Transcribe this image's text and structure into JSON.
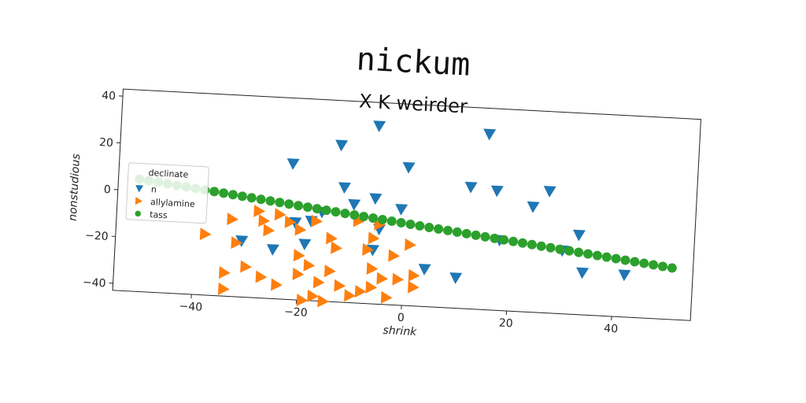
{
  "chart_data": {
    "type": "scatter",
    "title": "nickum",
    "subtitle": "X K weirder",
    "xlabel": "shrink",
    "ylabel": "nonstudious",
    "xlim": [
      -55,
      55
    ],
    "ylim": [
      -43,
      43
    ],
    "xticks": [
      -40,
      -20,
      0,
      20,
      40
    ],
    "yticks": [
      -40,
      -20,
      0,
      20,
      40
    ],
    "legend": {
      "title": "declinate",
      "placement": "left"
    },
    "series": [
      {
        "name": "n",
        "color": "#1f77b4",
        "marker": "triangle-down",
        "points": [
          [
            -6,
            33
          ],
          [
            15,
            32
          ],
          [
            -13,
            24
          ],
          [
            0,
            16
          ],
          [
            -22,
            15
          ],
          [
            12,
            9
          ],
          [
            17,
            8
          ],
          [
            27,
            9
          ],
          [
            -12,
            6
          ],
          [
            -6,
            2
          ],
          [
            24,
            2
          ],
          [
            -1,
            -2
          ],
          [
            -10,
            -1
          ],
          [
            -16,
            -5
          ],
          [
            -21,
            -10
          ],
          [
            -18,
            -9
          ],
          [
            -5,
            -11
          ],
          [
            -31,
            -19
          ],
          [
            -19,
            -19
          ],
          [
            -6,
            -20
          ],
          [
            18,
            -13
          ],
          [
            30,
            -16
          ],
          [
            33,
            -9
          ],
          [
            4,
            -27
          ],
          [
            34,
            -25
          ],
          [
            42,
            -25
          ],
          [
            10,
            -30
          ],
          [
            31,
            -52
          ],
          [
            -25,
            -22
          ]
        ]
      },
      {
        "name": "allylamine",
        "color": "#ff7f0e",
        "marker": "triangle-right",
        "points": [
          [
            -38,
            -17
          ],
          [
            -33,
            -10
          ],
          [
            -28,
            -6
          ],
          [
            -27,
            -10
          ],
          [
            -24,
            -7
          ],
          [
            -22,
            -10
          ],
          [
            -20,
            -13
          ],
          [
            -17,
            -9
          ],
          [
            -26,
            -14
          ],
          [
            -32,
            -20
          ],
          [
            -30,
            -30
          ],
          [
            -34,
            -33
          ],
          [
            -27,
            -34
          ],
          [
            -24,
            -37
          ],
          [
            -34,
            -40
          ],
          [
            -20,
            -24
          ],
          [
            -18,
            -28
          ],
          [
            -14,
            -30
          ],
          [
            -12,
            -36
          ],
          [
            -16,
            -35
          ],
          [
            -20,
            -32
          ],
          [
            -17,
            -41
          ],
          [
            -10,
            -40
          ],
          [
            -8,
            -38
          ],
          [
            -6,
            -36
          ],
          [
            -3,
            -40
          ],
          [
            -4,
            -32
          ],
          [
            -1,
            -32
          ],
          [
            2,
            -30
          ],
          [
            -6,
            -28
          ],
          [
            -2,
            -22
          ],
          [
            1,
            -17
          ],
          [
            -6,
            -15
          ],
          [
            -14,
            -16
          ],
          [
            -9,
            -8
          ],
          [
            -5,
            -9
          ],
          [
            -19,
            -43
          ],
          [
            -15,
            -43
          ],
          [
            -9,
            -46
          ],
          [
            -6,
            -47
          ],
          [
            -12,
            -45
          ],
          [
            -3,
            -44
          ],
          [
            0,
            -44
          ],
          [
            2,
            -35
          ],
          [
            5,
            -44
          ],
          [
            -7,
            -20
          ],
          [
            -13,
            -20
          ]
        ]
      },
      {
        "name": "tass",
        "color": "#2ca02c",
        "marker": "circle",
        "line": {
          "from": [
            -51,
            5
          ],
          "to": [
            51,
            -21
          ],
          "count": 58
        }
      }
    ]
  }
}
